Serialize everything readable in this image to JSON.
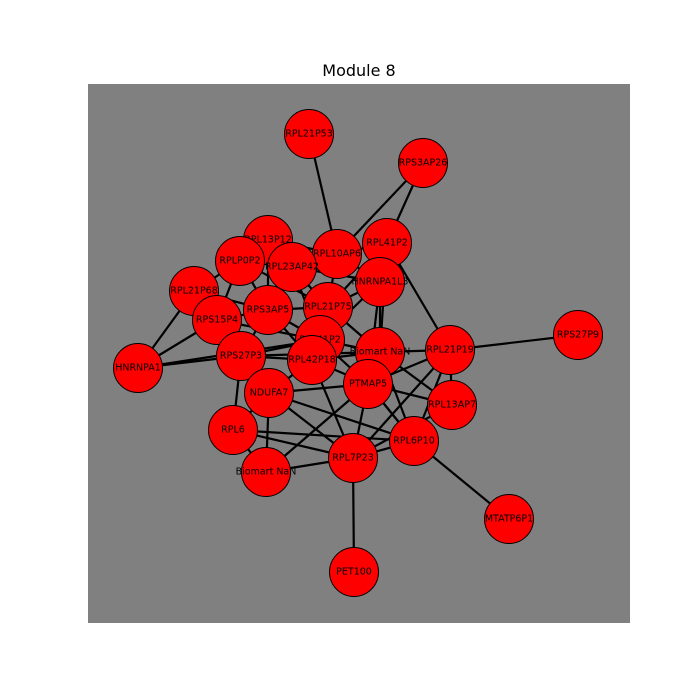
{
  "title": "Module 8",
  "colors": {
    "plot_background": "#808080",
    "node_fill": "#ff0000",
    "node_stroke": "#000000",
    "edge": "#000000"
  },
  "nodes": [
    {
      "id": "n0",
      "label": "RPL21P53"
    },
    {
      "id": "n1",
      "label": "RPS3AP26"
    },
    {
      "id": "n2",
      "label": "RPL13P12"
    },
    {
      "id": "n3",
      "label": "RPL10AP6"
    },
    {
      "id": "n4",
      "label": "RPL41P2"
    },
    {
      "id": "n5",
      "label": "RPLP0P2"
    },
    {
      "id": "n6",
      "label": "RPL23AP42"
    },
    {
      "id": "n7",
      "label": "HNRNPA1L3"
    },
    {
      "id": "n8",
      "label": "RPL21P68"
    },
    {
      "id": "n9",
      "label": "RPS3AP5"
    },
    {
      "id": "n10",
      "label": "RPL21P75"
    },
    {
      "id": "n11",
      "label": "RPS15P4"
    },
    {
      "id": "n12",
      "label": "RPL41P2"
    },
    {
      "id": "n13",
      "label": "RPS27P9"
    },
    {
      "id": "n14",
      "label": "Biomart NaN"
    },
    {
      "id": "n15",
      "label": "RPL21P19"
    },
    {
      "id": "n16",
      "label": "HNRNPA1"
    },
    {
      "id": "n17",
      "label": "RPS27P3"
    },
    {
      "id": "n18",
      "label": "RPL42P18"
    },
    {
      "id": "n19",
      "label": "PTMAP5"
    },
    {
      "id": "n20",
      "label": "NDUFA7"
    },
    {
      "id": "n21",
      "label": "RPL13AP7"
    },
    {
      "id": "n22",
      "label": "RPL6"
    },
    {
      "id": "n23",
      "label": "RPL6P10"
    },
    {
      "id": "n24",
      "label": "Biomart NaN"
    },
    {
      "id": "n25",
      "label": "RPL7P23"
    },
    {
      "id": "n26",
      "label": "MTATP6P1"
    },
    {
      "id": "n27",
      "label": "PET100"
    }
  ],
  "edges": [
    [
      "n0",
      "n3"
    ],
    [
      "n1",
      "n3"
    ],
    [
      "n1",
      "n4"
    ],
    [
      "n2",
      "n5"
    ],
    [
      "n2",
      "n6"
    ],
    [
      "n2",
      "n3"
    ],
    [
      "n2",
      "n9"
    ],
    [
      "n3",
      "n6"
    ],
    [
      "n3",
      "n7"
    ],
    [
      "n3",
      "n10"
    ],
    [
      "n3",
      "n4"
    ],
    [
      "n4",
      "n7"
    ],
    [
      "n4",
      "n14"
    ],
    [
      "n4",
      "n10"
    ],
    [
      "n4",
      "n15"
    ],
    [
      "n5",
      "n6"
    ],
    [
      "n5",
      "n9"
    ],
    [
      "n5",
      "n11"
    ],
    [
      "n5",
      "n8"
    ],
    [
      "n5",
      "n10"
    ],
    [
      "n6",
      "n9"
    ],
    [
      "n6",
      "n10"
    ],
    [
      "n6",
      "n12"
    ],
    [
      "n6",
      "n7"
    ],
    [
      "n7",
      "n10"
    ],
    [
      "n7",
      "n12"
    ],
    [
      "n7",
      "n14"
    ],
    [
      "n7",
      "n19"
    ],
    [
      "n8",
      "n11"
    ],
    [
      "n8",
      "n9"
    ],
    [
      "n8",
      "n16"
    ],
    [
      "n8",
      "n17"
    ],
    [
      "n9",
      "n11"
    ],
    [
      "n9",
      "n10"
    ],
    [
      "n9",
      "n12"
    ],
    [
      "n9",
      "n17"
    ],
    [
      "n9",
      "n18"
    ],
    [
      "n10",
      "n12"
    ],
    [
      "n10",
      "n18"
    ],
    [
      "n10",
      "n14"
    ],
    [
      "n11",
      "n16"
    ],
    [
      "n11",
      "n17"
    ],
    [
      "n11",
      "n12"
    ],
    [
      "n11",
      "n20"
    ],
    [
      "n12",
      "n18"
    ],
    [
      "n12",
      "n14"
    ],
    [
      "n12",
      "n19"
    ],
    [
      "n12",
      "n17"
    ],
    [
      "n13",
      "n15"
    ],
    [
      "n14",
      "n15"
    ],
    [
      "n14",
      "n19"
    ],
    [
      "n14",
      "n18"
    ],
    [
      "n14",
      "n21"
    ],
    [
      "n14",
      "n23"
    ],
    [
      "n15",
      "n19"
    ],
    [
      "n15",
      "n21"
    ],
    [
      "n15",
      "n23"
    ],
    [
      "n15",
      "n25"
    ],
    [
      "n16",
      "n17"
    ],
    [
      "n16",
      "n12"
    ],
    [
      "n17",
      "n20"
    ],
    [
      "n17",
      "n18"
    ],
    [
      "n17",
      "n22"
    ],
    [
      "n17",
      "n14"
    ],
    [
      "n18",
      "n20"
    ],
    [
      "n18",
      "n19"
    ],
    [
      "n18",
      "n25"
    ],
    [
      "n19",
      "n20"
    ],
    [
      "n19",
      "n21"
    ],
    [
      "n19",
      "n23"
    ],
    [
      "n19",
      "n25"
    ],
    [
      "n20",
      "n22"
    ],
    [
      "n20",
      "n24"
    ],
    [
      "n20",
      "n25"
    ],
    [
      "n20",
      "n23"
    ],
    [
      "n22",
      "n25"
    ],
    [
      "n22",
      "n24"
    ],
    [
      "n22",
      "n23"
    ],
    [
      "n23",
      "n25"
    ],
    [
      "n23",
      "n26"
    ],
    [
      "n23",
      "n19"
    ],
    [
      "n24",
      "n25"
    ],
    [
      "n24",
      "n19"
    ],
    [
      "n25",
      "n27"
    ],
    [
      "n25",
      "n21"
    ]
  ]
}
